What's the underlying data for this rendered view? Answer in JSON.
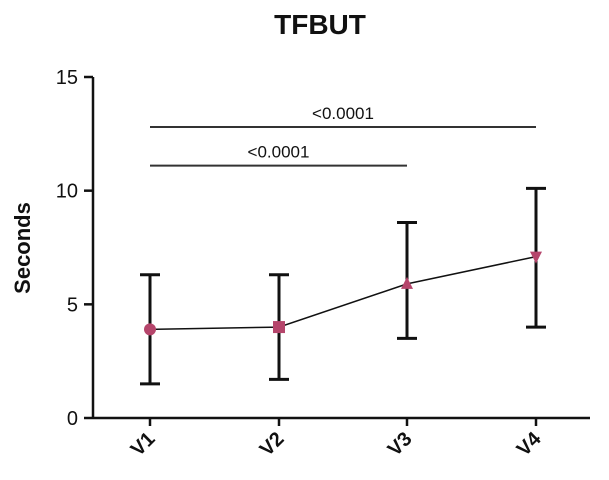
{
  "chart_data": {
    "type": "line",
    "title": "TFBUT",
    "xlabel": "",
    "ylabel": "Seconds",
    "categories": [
      "V1",
      "V2",
      "V3",
      "V4"
    ],
    "ylim": [
      0,
      15
    ],
    "yticks": [
      0,
      5,
      10,
      15
    ],
    "grid": false,
    "series": [
      {
        "values": [
          3.9,
          4.0,
          5.9,
          7.1
        ],
        "error_low": [
          1.5,
          1.7,
          3.5,
          4.0
        ],
        "error_high": [
          6.3,
          6.3,
          8.6,
          10.1
        ],
        "markers": [
          "circle",
          "square",
          "triangle-up",
          "triangle-down"
        ],
        "marker_color": "#b5456b",
        "line_color": "#111111"
      }
    ],
    "annotations": [
      {
        "text": "<0.0001",
        "from": "V1",
        "to": "V3",
        "y": 11.1
      },
      {
        "text": "<0.0001",
        "from": "V1",
        "to": "V4",
        "y": 12.8
      }
    ]
  }
}
